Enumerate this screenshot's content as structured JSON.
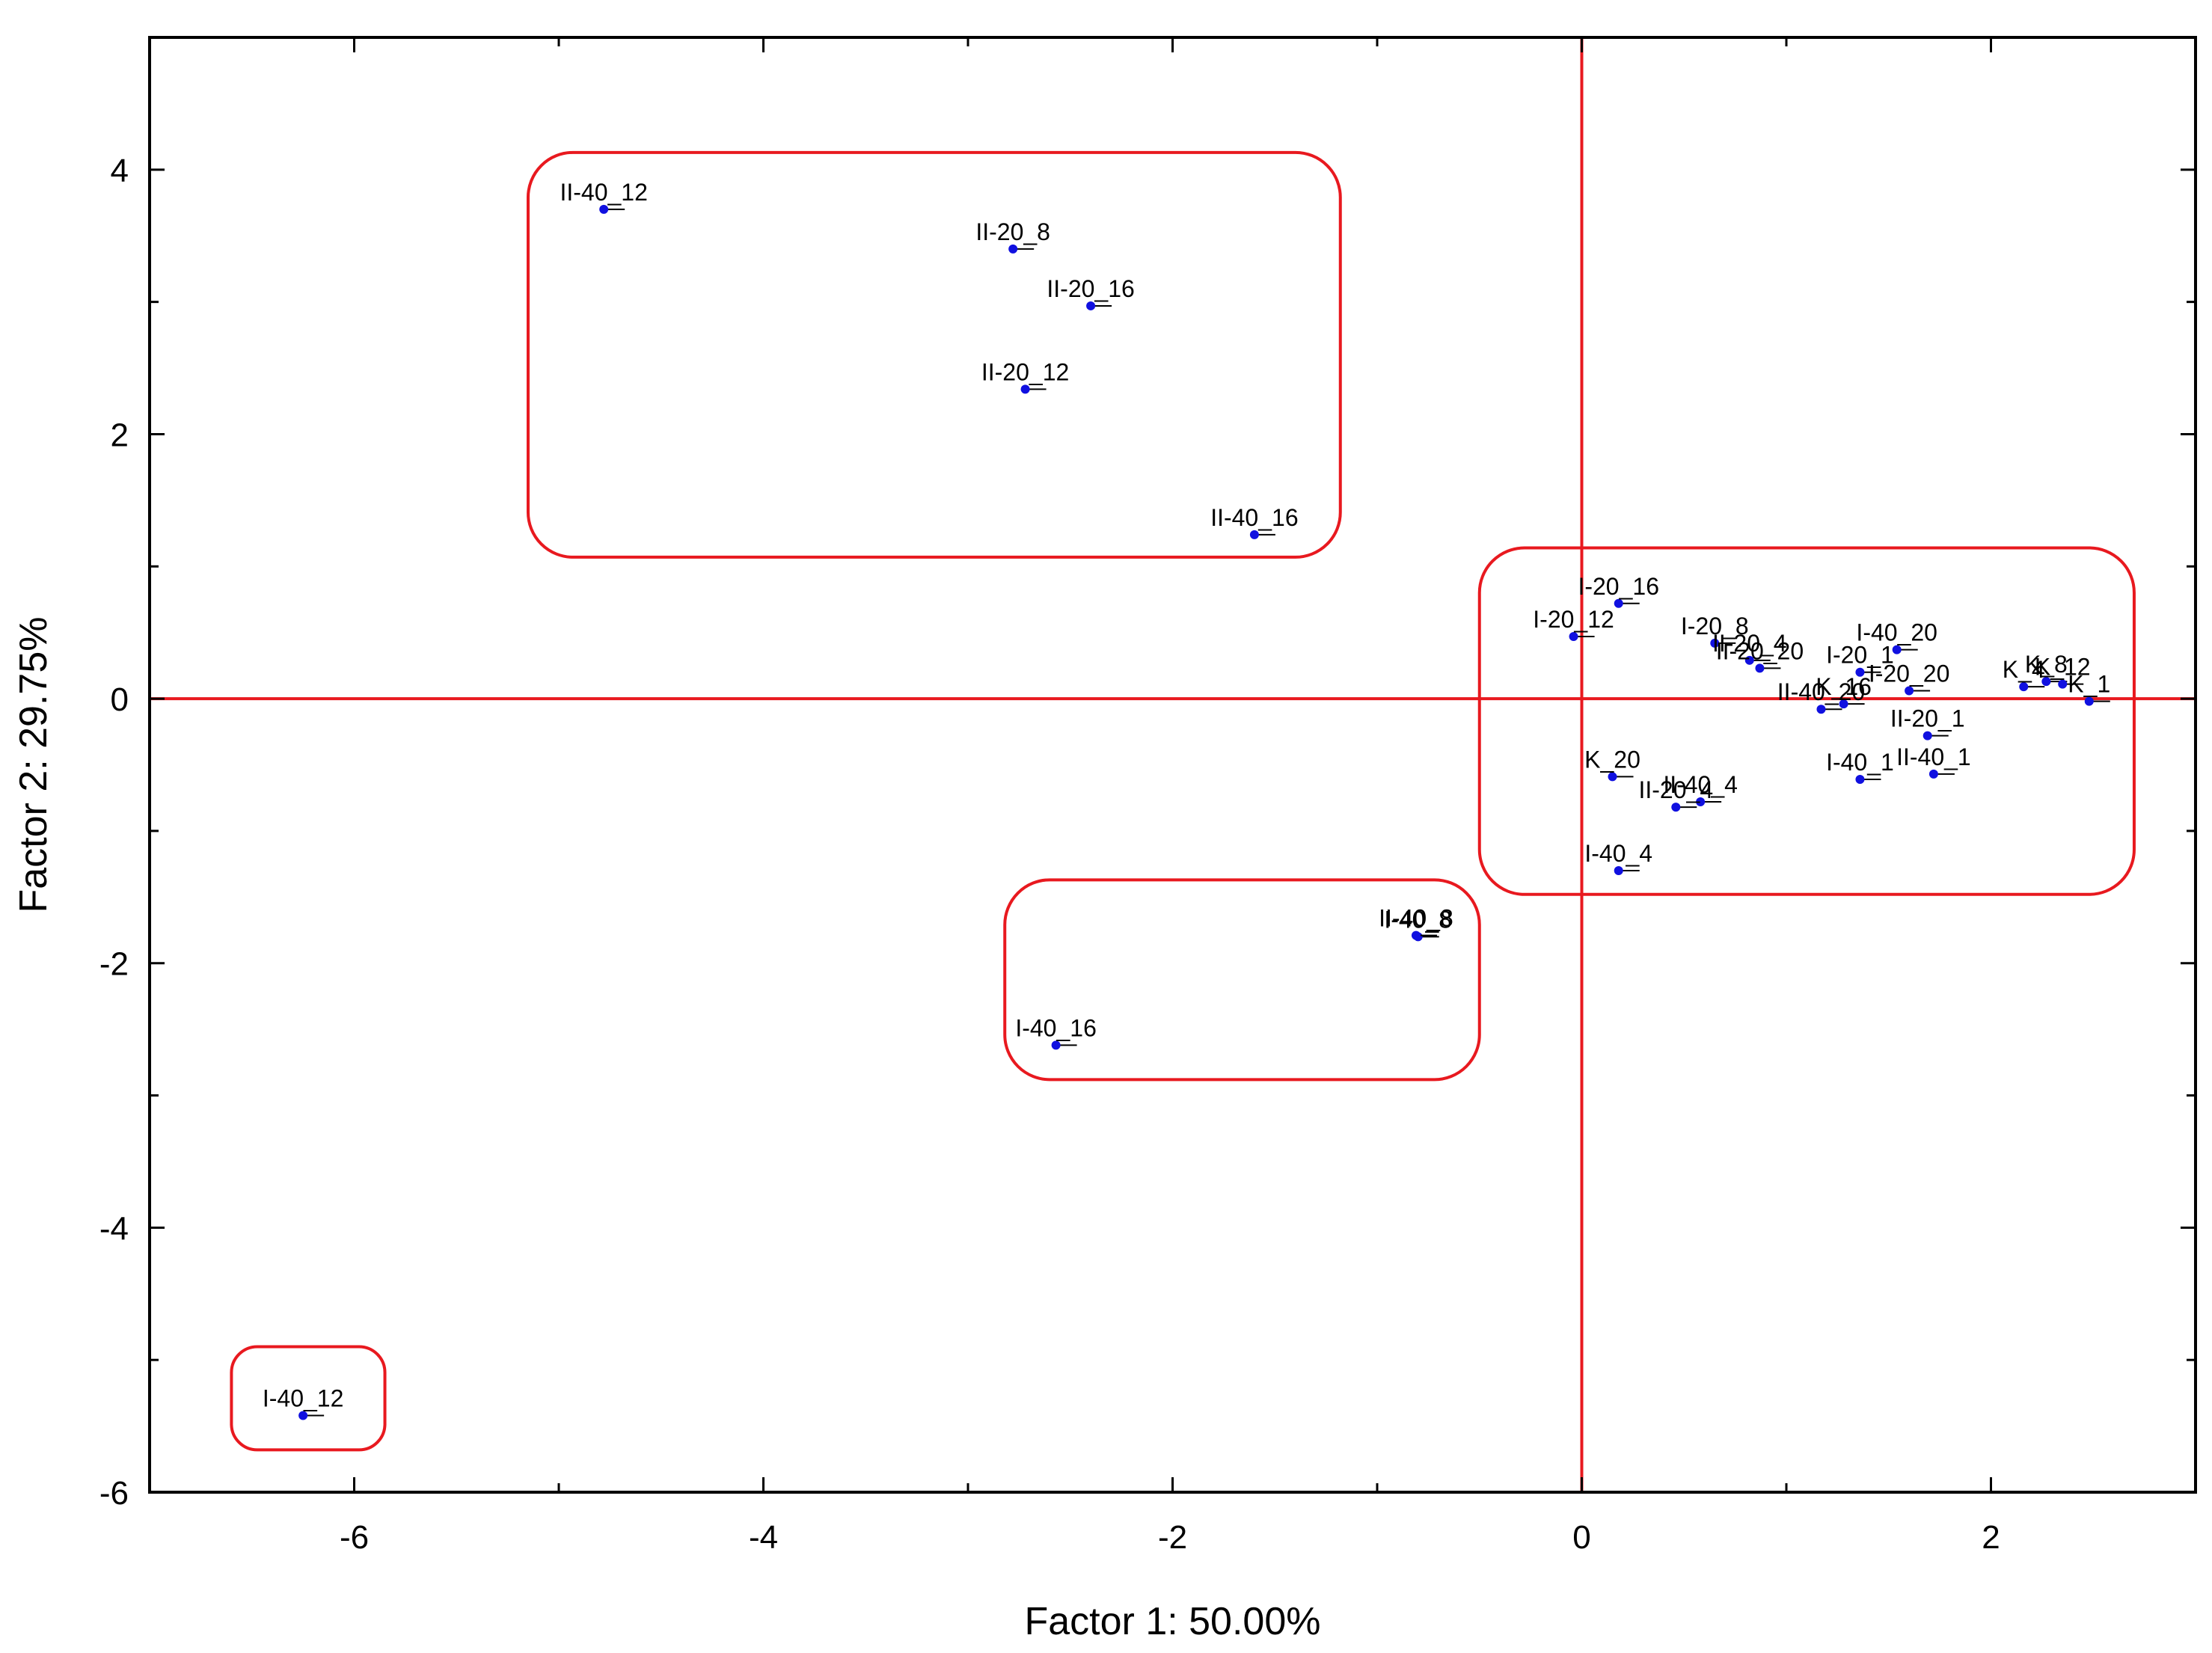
{
  "chart_data": {
    "type": "scatter",
    "title": "",
    "xlabel": "Factor 1: 50.00%",
    "ylabel": "Factor 2: 29.75%",
    "xlim": [
      -7,
      3
    ],
    "ylim": [
      -6,
      5
    ],
    "xticks": [
      -6,
      -4,
      -2,
      0,
      2
    ],
    "yticks": [
      -6,
      -4,
      -2,
      0,
      2,
      4
    ],
    "xtick_labels": [
      "-6",
      "-4",
      "-2",
      "0",
      "2"
    ],
    "ytick_labels": [
      "-6",
      "-4",
      "-2",
      "0",
      "2",
      "4"
    ],
    "reference_lines": {
      "x": 0,
      "y": 0,
      "color": "#e8191f"
    },
    "point_color": "#1010e0",
    "points": [
      {
        "label": "II-40_12",
        "x": -4.78,
        "y": 3.7
      },
      {
        "label": "II-20_8",
        "x": -2.78,
        "y": 3.4
      },
      {
        "label": "II-20_16",
        "x": -2.4,
        "y": 2.97
      },
      {
        "label": "II-20_12",
        "x": -2.72,
        "y": 2.34
      },
      {
        "label": "II-40_16",
        "x": -1.6,
        "y": 1.24
      },
      {
        "label": "I-20_16",
        "x": 0.18,
        "y": 0.72
      },
      {
        "label": "I-20_12",
        "x": -0.04,
        "y": 0.47
      },
      {
        "label": "I-20_8",
        "x": 0.65,
        "y": 0.42
      },
      {
        "label": "II-20_4",
        "x": 0.82,
        "y": 0.29
      },
      {
        "label": "II-20_20",
        "x": 0.87,
        "y": 0.23
      },
      {
        "label": "I-40_20",
        "x": 1.54,
        "y": 0.37
      },
      {
        "label": "I-20_1",
        "x": 1.36,
        "y": 0.2
      },
      {
        "label": "I-20_20",
        "x": 1.6,
        "y": 0.06
      },
      {
        "label": "K_16",
        "x": 1.28,
        "y": -0.04
      },
      {
        "label": "II-40_20",
        "x": 1.17,
        "y": -0.08
      },
      {
        "label": "K_4",
        "x": 2.16,
        "y": 0.09
      },
      {
        "label": "K_8",
        "x": 2.27,
        "y": 0.13
      },
      {
        "label": "K_12",
        "x": 2.35,
        "y": 0.11
      },
      {
        "label": "K_1",
        "x": 2.48,
        "y": -0.02
      },
      {
        "label": "II-20_1",
        "x": 1.69,
        "y": -0.28
      },
      {
        "label": "I-40_1",
        "x": 1.36,
        "y": -0.61
      },
      {
        "label": "II-40_1",
        "x": 1.72,
        "y": -0.57
      },
      {
        "label": "K_20",
        "x": 0.15,
        "y": -0.59
      },
      {
        "label": "II-40_4",
        "x": 0.58,
        "y": -0.78
      },
      {
        "label": "II-20_4",
        "x": 0.46,
        "y": -0.82
      },
      {
        "label": "I-40_4",
        "x": 0.18,
        "y": -1.3
      },
      {
        "label": "I-40_8",
        "x": -0.8,
        "y": -1.8
      },
      {
        "label": "II-40_8",
        "x": -0.81,
        "y": -1.79
      },
      {
        "label": "I-40_16",
        "x": -2.57,
        "y": -2.62
      },
      {
        "label": "I-40_12",
        "x": -6.25,
        "y": -5.42
      }
    ],
    "cluster_boxes": [
      {
        "name": "cluster-upper-left",
        "x": [
          -5.15,
          -1.18
        ],
        "y": [
          1.07,
          4.13
        ]
      },
      {
        "name": "cluster-right",
        "x": [
          -0.5,
          2.7
        ],
        "y": [
          -1.48,
          1.14
        ]
      },
      {
        "name": "cluster-mid-lower",
        "x": [
          -2.82,
          -0.5
        ],
        "y": [
          -2.88,
          -1.37
        ]
      },
      {
        "name": "cluster-bottom-left",
        "x": [
          -6.6,
          -5.85
        ],
        "y": [
          -5.68,
          -4.9
        ]
      }
    ],
    "box_color": "#e8191f"
  }
}
